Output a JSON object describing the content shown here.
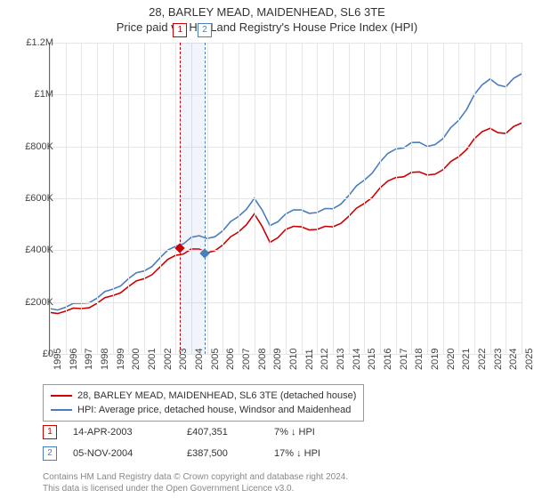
{
  "title_line1": "28, BARLEY MEAD, MAIDENHEAD, SL6 3TE",
  "title_line2": "Price paid vs. HM Land Registry's House Price Index (HPI)",
  "chart": {
    "type": "line",
    "x_years": [
      1995,
      1996,
      1997,
      1998,
      1999,
      2000,
      2001,
      2002,
      2003,
      2004,
      2005,
      2006,
      2007,
      2008,
      2009,
      2010,
      2011,
      2012,
      2013,
      2014,
      2015,
      2016,
      2017,
      2018,
      2019,
      2020,
      2021,
      2022,
      2023,
      2024,
      2025
    ],
    "ylim": [
      0,
      1200000
    ],
    "yticks": [
      0,
      200000,
      400000,
      600000,
      800000,
      1000000,
      1200000
    ],
    "ytick_labels": [
      "£0",
      "£200K",
      "£400K",
      "£600K",
      "£800K",
      "£1M",
      "£1.2M"
    ],
    "series_property": {
      "color": "#cc0000",
      "values": [
        160,
        165,
        175,
        195,
        225,
        260,
        290,
        335,
        380,
        405,
        390,
        420,
        470,
        540,
        430,
        480,
        490,
        480,
        490,
        530,
        580,
        640,
        680,
        700,
        690,
        710,
        760,
        830,
        870,
        850,
        890
      ]
    },
    "series_hpi": {
      "color": "#4a7ebb",
      "values": [
        175,
        180,
        195,
        215,
        250,
        290,
        320,
        370,
        415,
        450,
        445,
        475,
        530,
        600,
        495,
        540,
        555,
        545,
        560,
        610,
        670,
        740,
        790,
        815,
        800,
        830,
        900,
        1000,
        1060,
        1030,
        1080
      ]
    },
    "events": [
      {
        "n": "1",
        "year": 2003.29,
        "price": 407,
        "color": "#cc0000"
      },
      {
        "n": "2",
        "year": 2004.85,
        "price": 388,
        "color": "#4a7ebb"
      }
    ],
    "grid_color": "#e6e6e6",
    "axis_color": "#666666",
    "background": "#ffffff"
  },
  "legend": {
    "row1": "28, BARLEY MEAD, MAIDENHEAD, SL6 3TE (detached house)",
    "row2": "HPI: Average price, detached house, Windsor and Maidenhead"
  },
  "sales": [
    {
      "n": "1",
      "date": "14-APR-2003",
      "price": "£407,351",
      "delta": "7% ↓ HPI",
      "color": "#cc0000"
    },
    {
      "n": "2",
      "date": "05-NOV-2004",
      "price": "£387,500",
      "delta": "17% ↓ HPI",
      "color": "#4a7ebb"
    }
  ],
  "footer_line1": "Contains HM Land Registry data © Crown copyright and database right 2024.",
  "footer_line2": "This data is licensed under the Open Government Licence v3.0."
}
